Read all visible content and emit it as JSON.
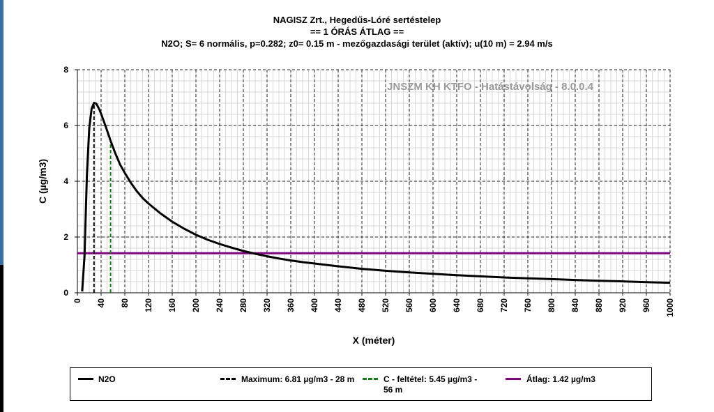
{
  "titles": {
    "line1": "NAGISZ Zrt., Hegedűs-Lóré sertéstelep",
    "line2": "== 1 ÓRÁS ÁTLAG ==",
    "line3": "N2O; S= 6 normális, p=0.282; z0= 0.15 m - mezőgazdasági terület (aktív); u(10 m) = 2.94 m/s"
  },
  "watermark": "JNSZM KH KTFO - Hatástávolság  - 8.0.0.4",
  "legend": {
    "n2o": "N2O",
    "maximum": "Maximum: 6.81 µg/m3 - 28 m",
    "feltetel": "C - feltétel: 5.45 µg/m3 - 56 m",
    "atlag": "Átlag: 1.42 µg/m3"
  },
  "chart_data": {
    "type": "line",
    "xlabel": "X (méter)",
    "ylabel": "C (µg/m3)",
    "xlim": [
      0,
      1000
    ],
    "ylim": [
      0,
      8
    ],
    "x_ticks": [
      0,
      40,
      80,
      120,
      160,
      200,
      240,
      280,
      320,
      360,
      400,
      440,
      480,
      520,
      560,
      600,
      640,
      680,
      720,
      760,
      800,
      840,
      880,
      920,
      960,
      1000
    ],
    "y_ticks": [
      0,
      2,
      4,
      6,
      8
    ],
    "grid": true,
    "series": [
      {
        "name": "N2O",
        "color": "#000000",
        "x": [
          8,
          12,
          16,
          20,
          24,
          28,
          32,
          36,
          40,
          48,
          56,
          64,
          72,
          80,
          90,
          100,
          110,
          120,
          140,
          160,
          180,
          200,
          220,
          240,
          260,
          280,
          300,
          320,
          340,
          360,
          380,
          400,
          440,
          480,
          520,
          560,
          600,
          640,
          680,
          720,
          760,
          800,
          840,
          880,
          920,
          960,
          1000
        ],
        "y": [
          0.05,
          1.3,
          4.2,
          5.9,
          6.6,
          6.81,
          6.78,
          6.62,
          6.42,
          5.95,
          5.45,
          5.0,
          4.6,
          4.3,
          3.95,
          3.65,
          3.4,
          3.2,
          2.85,
          2.55,
          2.3,
          2.08,
          1.9,
          1.75,
          1.62,
          1.5,
          1.4,
          1.31,
          1.23,
          1.16,
          1.1,
          1.05,
          0.95,
          0.86,
          0.79,
          0.73,
          0.68,
          0.63,
          0.59,
          0.55,
          0.52,
          0.49,
          0.46,
          0.43,
          0.41,
          0.38,
          0.36
        ]
      }
    ],
    "maximum": {
      "x": 28,
      "y": 6.81,
      "color": "#000000"
    },
    "feltetel": {
      "x": 56,
      "y": 5.45,
      "color": "#1a7a1a"
    },
    "atlag": {
      "y": 1.42,
      "color": "#800080"
    }
  }
}
